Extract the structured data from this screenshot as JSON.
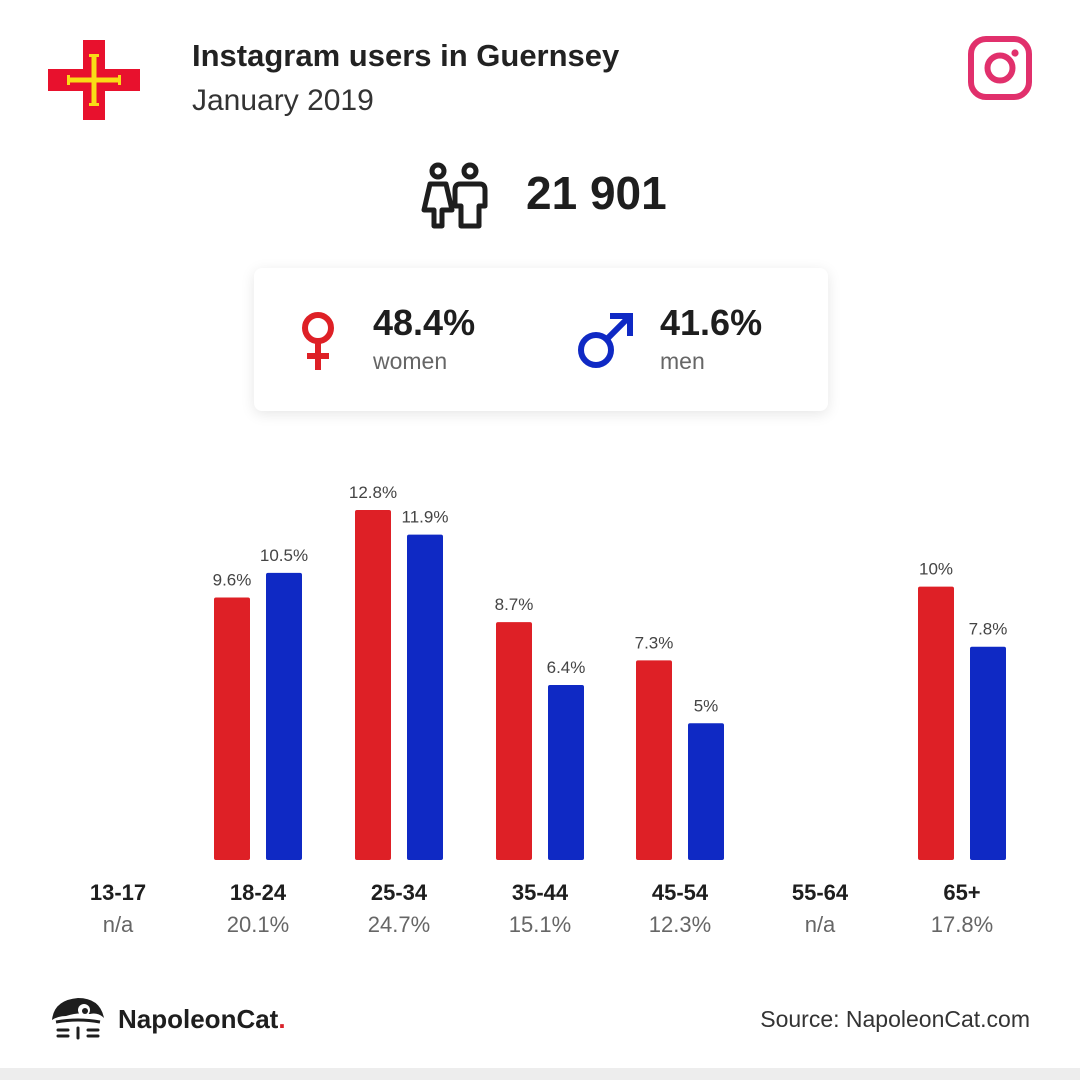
{
  "header": {
    "title": "Instagram users in Guernsey",
    "subtitle": "January 2019"
  },
  "total_users": "21 901",
  "gender": {
    "women_pct": "48.4%",
    "women_label": "women",
    "men_pct": "41.6%",
    "men_label": "men"
  },
  "colors": {
    "women": "#de2026",
    "men": "#0f29c4",
    "instagram": "#e1306c",
    "flag_red": "#e8112d",
    "flag_gold": "#f9dd16"
  },
  "icons": {
    "flag": "guernsey-flag-icon",
    "instagram": "instagram-icon",
    "users": "users-icon",
    "female": "female-symbol-icon",
    "male": "male-symbol-icon",
    "brand": "napoleoncat-logo-icon"
  },
  "chart_data": {
    "type": "bar",
    "categories": [
      "13-17",
      "18-24",
      "25-34",
      "35-44",
      "45-54",
      "55-64",
      "65+"
    ],
    "category_totals": [
      "n/a",
      "20.1%",
      "24.7%",
      "15.1%",
      "12.3%",
      "n/a",
      "17.8%"
    ],
    "series": [
      {
        "values": [
          null,
          9.6,
          12.8,
          8.7,
          7.3,
          null,
          10
        ],
        "labels": [
          "",
          "9.6%",
          "12.8%",
          "8.7%",
          "7.3%",
          "",
          "10%"
        ],
        "color": "#de2026"
      },
      {
        "values": [
          null,
          10.5,
          11.9,
          6.4,
          5,
          null,
          7.8
        ],
        "labels": [
          "",
          "10.5%",
          "11.9%",
          "6.4%",
          "5%",
          "",
          "7.8%"
        ],
        "color": "#0f29c4"
      }
    ],
    "ylim": [
      0,
      12.8
    ],
    "grid": false,
    "legend": "none"
  },
  "footer": {
    "brand_name": "NapoleonCat",
    "brand_dot": ".",
    "source": "Source: NapoleonCat.com"
  }
}
